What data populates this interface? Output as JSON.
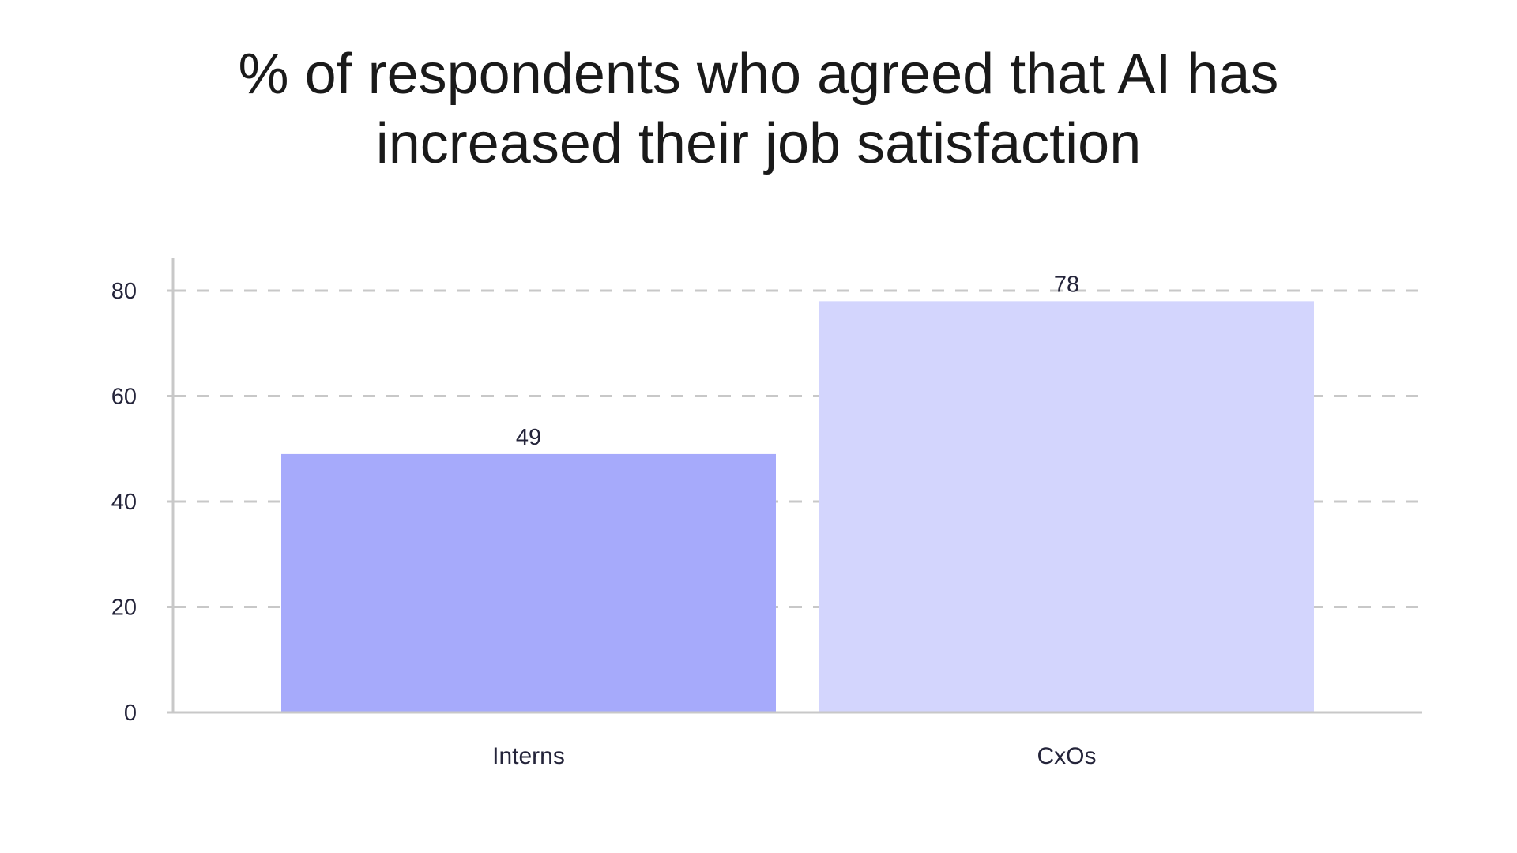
{
  "chart_data": {
    "type": "bar",
    "title_lines": [
      "% of respondents who agreed that AI has",
      "increased their job satisfaction"
    ],
    "categories": [
      "Interns",
      "CxOs"
    ],
    "values": [
      49,
      78
    ],
    "data_labels": [
      "49",
      "78"
    ],
    "bar_colors": [
      "#a6aafb",
      "#d3d5fd"
    ],
    "ylim": [
      0,
      86
    ],
    "yticks": [
      0,
      20,
      40,
      60,
      80
    ],
    "ytick_labels": [
      "0",
      "20",
      "40",
      "60",
      "80"
    ],
    "xlabel": "",
    "ylabel": "",
    "grid": true,
    "grid_style": "dashed",
    "grid_color": "#c8c8c8",
    "axis_color": "#c8c8c8",
    "text_color": "#24243a"
  }
}
